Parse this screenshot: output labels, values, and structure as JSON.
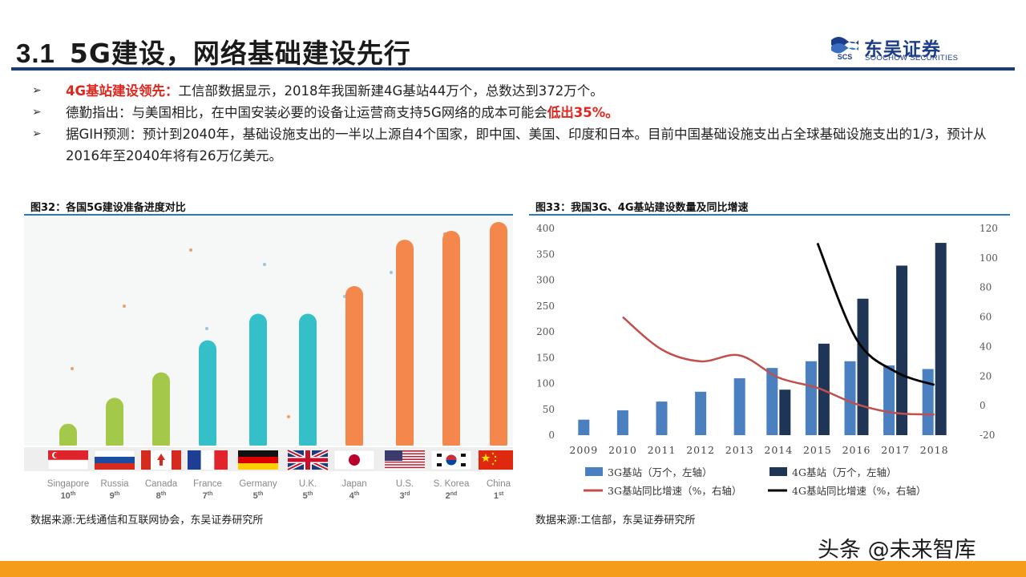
{
  "header": {
    "section_number": "3.1",
    "title": "5G建设，网络基础建设先行",
    "logo_cn": "东吴证券",
    "logo_en": "SOOCHOW SECURITIES",
    "logo_mark_text": "SCS"
  },
  "bullets": [
    {
      "highlight": "4G基站建设领先：",
      "text": "工信部数据显示，2018年我国新建4G基站44万个，总数达到372万个。",
      "tail": ""
    },
    {
      "highlight": "",
      "text": "德勤指出：与美国相比，在中国安装必要的设备让运营商支持5G网络的成本可能会",
      "tail": "低出35%。"
    },
    {
      "highlight": "",
      "text": "据GIH预测：预计到2040年，基础设施支出的一半以上源自4个国家，即中国、美国、印度和日本。目前中国基础设施支出占全球基础设施支出的1/3，预计从2016年至2040年将有26万亿美元。",
      "tail": ""
    }
  ],
  "left_figure": {
    "label": "图32：各国5G建设准备进度对比",
    "source": "数据来源:无线通信和互联网协会，东吴证券研究所"
  },
  "right_figure": {
    "label": "图33：我国3G、4G基站建设数量及同比增速",
    "source": "数据来源:工信部，东吴证券研究所"
  },
  "watermark": "头条 @未来智库",
  "chart_data": [
    {
      "type": "bar",
      "categories": [
        "Singapore",
        "Russia",
        "Canada",
        "France",
        "Germany",
        "U.K.",
        "Japan",
        "U.S.",
        "S. Korea",
        "China"
      ],
      "ranks": [
        "10th",
        "9th",
        "8th",
        "7th",
        "5th",
        "5th",
        "4th",
        "3rd",
        "2nd",
        "1st"
      ],
      "values": [
        0.88,
        2.05,
        3.2,
        4.65,
        5.85,
        5.85,
        7.1,
        9.2,
        9.6,
        10.0
      ],
      "title": "",
      "colors": {
        "low": "#a3c84a",
        "mid": "#35bfc8",
        "high": "#f4874b"
      }
    },
    {
      "type": "bar+line",
      "categories": [
        "2009",
        "2010",
        "2011",
        "2012",
        "2013",
        "2014",
        "2015",
        "2016",
        "2017",
        "2018"
      ],
      "series": [
        {
          "name": "3G基站（万个，左轴）",
          "type": "bar",
          "axis": "left",
          "color": "#4a7fc0",
          "values": [
            30,
            48,
            65,
            84,
            110,
            130,
            143,
            143,
            135,
            128
          ]
        },
        {
          "name": "4G基站（万个，左轴）",
          "type": "bar",
          "axis": "left",
          "color": "#1f3556",
          "values": [
            null,
            null,
            null,
            null,
            null,
            88,
            177,
            264,
            328,
            372
          ]
        },
        {
          "name": "3G基站同比增速（%，右轴）",
          "type": "line",
          "axis": "right",
          "color": "#c0504d",
          "values": [
            null,
            60,
            38,
            30,
            34,
            19,
            12,
            1,
            -5,
            -6
          ]
        },
        {
          "name": "4G基站同比增速（%，右轴）",
          "type": "line",
          "axis": "right",
          "color": "#000000",
          "values": [
            null,
            null,
            null,
            null,
            null,
            null,
            110,
            45,
            23,
            14
          ]
        }
      ],
      "left_axis": {
        "min": 0,
        "max": 400,
        "ticks": [
          0,
          50,
          100,
          150,
          200,
          250,
          300,
          350,
          400
        ]
      },
      "right_axis": {
        "min": -20,
        "max": 120,
        "ticks": [
          -20,
          0,
          20,
          40,
          60,
          80,
          100,
          120
        ]
      },
      "legend_position": "bottom",
      "grid": false
    }
  ]
}
